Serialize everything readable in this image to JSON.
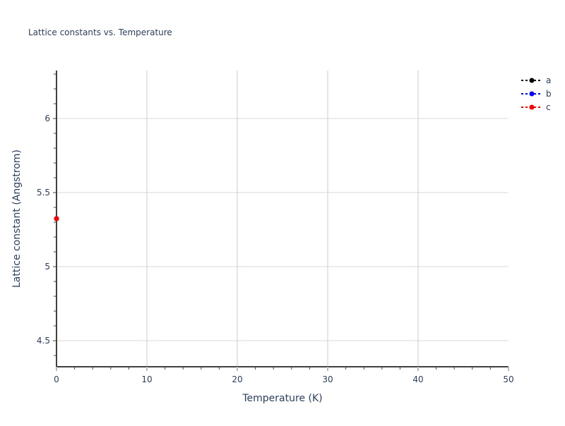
{
  "chart_data": {
    "type": "line",
    "title": "Lattice constants vs. Temperature",
    "xlabel": "Temperature (K)",
    "ylabel": "Lattice constant (Angstrom)",
    "xlim": [
      0,
      50
    ],
    "ylim": [
      4.324,
      6.324
    ],
    "x_ticks": [
      0,
      10,
      20,
      30,
      40,
      50
    ],
    "y_ticks": [
      4.5,
      5,
      5.5,
      6
    ],
    "x_tick_labels": [
      "0",
      "10",
      "20",
      "30",
      "40",
      "50"
    ],
    "y_tick_labels": [
      "4.5",
      "5",
      "5.5",
      "6"
    ],
    "grid": true,
    "legend_position": "top-right",
    "line_style": "dotted with markers",
    "series": [
      {
        "name": "a",
        "color": "#000000",
        "x": [
          0
        ],
        "y": [
          5.324
        ]
      },
      {
        "name": "b",
        "color": "#0000ff",
        "x": [
          0
        ],
        "y": [
          5.324
        ]
      },
      {
        "name": "c",
        "color": "#ff0000",
        "x": [
          0
        ],
        "y": [
          5.324
        ]
      }
    ]
  }
}
